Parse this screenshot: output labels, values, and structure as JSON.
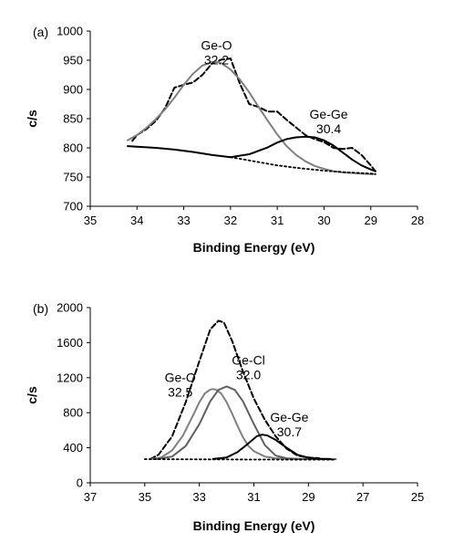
{
  "chart_data": [
    {
      "type": "line",
      "panel_label": "(a)",
      "xlabel": "Binding Energy (eV)",
      "ylabel": "c/s",
      "xlim": [
        35,
        28
      ],
      "ylim": [
        700,
        1000
      ],
      "xticks": [
        35,
        34,
        33,
        32,
        31,
        30,
        29,
        28
      ],
      "yticks": [
        700,
        750,
        800,
        850,
        900,
        950,
        1000
      ],
      "grid": false,
      "annotations": [
        {
          "lines": [
            "Ge-O",
            "32.2"
          ],
          "x": 32.3,
          "y": 968
        },
        {
          "lines": [
            "Ge-Ge",
            "30.4"
          ],
          "x": 29.9,
          "y": 850
        }
      ],
      "series": [
        {
          "style": "dashed",
          "color": "#000000",
          "x": [
            34.1,
            34.0,
            33.8,
            33.6,
            33.4,
            33.2,
            33.0,
            32.8,
            32.6,
            32.4,
            32.2,
            32.0,
            31.8,
            31.6,
            31.4,
            31.2,
            31.0,
            30.8,
            30.6,
            30.4,
            30.2,
            30.0,
            29.8,
            29.6,
            29.4,
            29.2,
            29.0,
            28.9
          ],
          "y": [
            812,
            822,
            832,
            846,
            868,
            903,
            908,
            912,
            925,
            944,
            951,
            953,
            910,
            875,
            870,
            862,
            862,
            848,
            835,
            822,
            815,
            810,
            800,
            798,
            800,
            788,
            770,
            760
          ]
        },
        {
          "style": "solid",
          "color": "#808080",
          "x": [
            34.2,
            34.0,
            33.8,
            33.6,
            33.4,
            33.2,
            33.0,
            32.8,
            32.6,
            32.4,
            32.3,
            32.2,
            32.0,
            31.8,
            31.6,
            31.4,
            31.2,
            31.0,
            30.8,
            30.6,
            30.4,
            30.2,
            30.0,
            29.8,
            29.6,
            29.4,
            29.2,
            29.0,
            28.9
          ],
          "y": [
            813,
            822,
            834,
            849,
            866,
            886,
            908,
            927,
            941,
            947,
            947,
            945,
            934,
            917,
            895,
            870,
            846,
            823,
            803,
            788,
            777,
            769,
            764,
            760,
            758,
            757,
            756,
            755,
            755
          ]
        },
        {
          "style": "solid",
          "color": "#000000",
          "x": [
            34.2,
            34.0,
            33.6,
            33.2,
            32.8,
            32.4,
            32.0,
            31.6,
            31.2,
            31.0,
            30.8,
            30.6,
            30.4,
            30.2,
            30.0,
            29.8,
            29.6,
            29.4,
            29.2,
            29.0,
            28.9
          ],
          "y": [
            803,
            802,
            800,
            797,
            793,
            788,
            784,
            789,
            801,
            809,
            815,
            818,
            819,
            818,
            813,
            804,
            792,
            780,
            770,
            763,
            760
          ]
        },
        {
          "style": "dotted",
          "color": "#000000",
          "x": [
            32.0,
            31.5,
            31.0,
            30.5,
            30.0,
            29.5,
            29.0,
            28.9
          ],
          "y": [
            784,
            777,
            770,
            765,
            761,
            758,
            756,
            755
          ]
        }
      ]
    },
    {
      "type": "line",
      "panel_label": "(b)",
      "xlabel": "Binding Energy (eV)",
      "ylabel": "c/s",
      "xlim": [
        37,
        25
      ],
      "ylim": [
        0,
        2000
      ],
      "xticks": [
        37,
        35,
        33,
        31,
        29,
        27,
        25
      ],
      "yticks": [
        0,
        400,
        800,
        1200,
        1600,
        2000
      ],
      "grid": false,
      "annotations": [
        {
          "lines": [
            "Ge-O",
            "32.5"
          ],
          "x": 33.7,
          "y": 1150
        },
        {
          "lines": [
            "Ge-Cl",
            "32.0"
          ],
          "x": 31.2,
          "y": 1350
        },
        {
          "lines": [
            "Ge-Ge",
            "30.7"
          ],
          "x": 29.7,
          "y": 700
        }
      ],
      "series": [
        {
          "style": "dashed",
          "color": "#000000",
          "x": [
            34.8,
            34.5,
            34.0,
            33.5,
            33.0,
            32.6,
            32.3,
            32.1,
            31.8,
            31.4,
            31.0,
            30.6,
            30.2,
            29.8,
            29.4,
            29.0,
            28.6
          ],
          "y": [
            270,
            320,
            530,
            920,
            1390,
            1750,
            1850,
            1830,
            1620,
            1270,
            960,
            720,
            530,
            390,
            310,
            290,
            280
          ]
        },
        {
          "style": "solid",
          "color": "#808080",
          "x": [
            34.8,
            34.4,
            34.0,
            33.6,
            33.2,
            33.0,
            32.8,
            32.6,
            32.5,
            32.4,
            32.2,
            32.0,
            31.8,
            31.6,
            31.4,
            31.2,
            31.0,
            30.6,
            30.2,
            29.8,
            28.0
          ],
          "y": [
            270,
            290,
            370,
            540,
            790,
            920,
            1020,
            1065,
            1070,
            1065,
            1020,
            920,
            790,
            650,
            520,
            420,
            360,
            300,
            280,
            275,
            270
          ]
        },
        {
          "style": "solid",
          "color": "#606060",
          "x": [
            34.6,
            34.0,
            33.5,
            33.0,
            32.6,
            32.3,
            32.0,
            31.7,
            31.4,
            31.0,
            30.6,
            30.2,
            29.8,
            29.4,
            28.0
          ],
          "y": [
            270,
            300,
            420,
            670,
            930,
            1060,
            1100,
            1060,
            930,
            670,
            430,
            310,
            280,
            272,
            270
          ]
        },
        {
          "style": "solid",
          "color": "#000000",
          "x": [
            32.5,
            32.0,
            31.6,
            31.2,
            30.9,
            30.7,
            30.5,
            30.2,
            29.8,
            29.4,
            29.0,
            28.6,
            28.2
          ],
          "y": [
            272,
            290,
            350,
            450,
            530,
            550,
            540,
            490,
            400,
            320,
            285,
            275,
            272
          ]
        },
        {
          "style": "dotted",
          "color": "#000000",
          "x": [
            35.0,
            33.0,
            31.0,
            29.0,
            28.0
          ],
          "y": [
            270,
            268,
            266,
            265,
            265
          ]
        }
      ]
    }
  ]
}
